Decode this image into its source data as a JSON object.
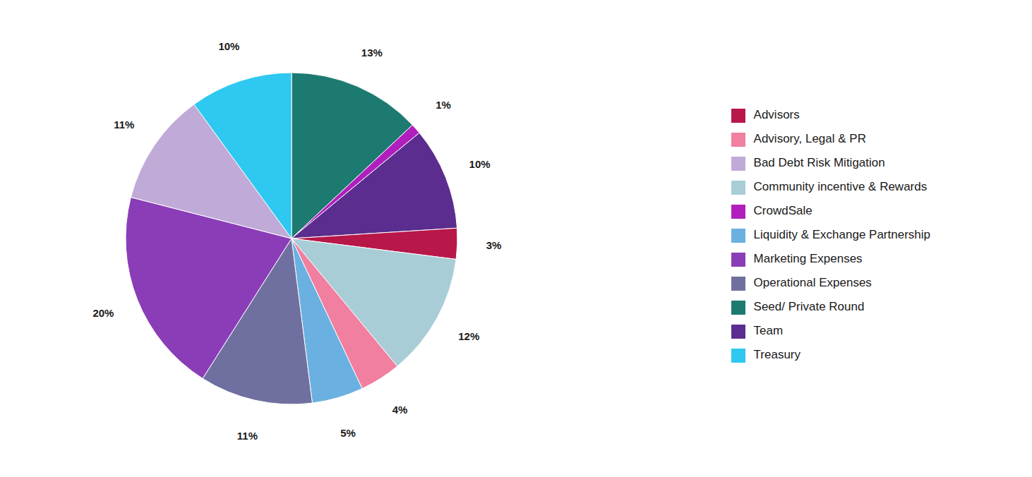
{
  "chart_data": {
    "type": "pie",
    "categories": [
      "Seed/ Private Round",
      "CrowdSale",
      "Team",
      "Advisors",
      "Community incentive & Rewards",
      "Advisory, Legal & PR",
      "Liquidity & Exchange Partnership",
      "Operational Expenses",
      "Marketing Expenses",
      "Bad Debt Risk Mitigation",
      "Treasury"
    ],
    "values": [
      13,
      1,
      10,
      3,
      12,
      4,
      5,
      11,
      20,
      11,
      10
    ],
    "value_labels": [
      "13%",
      "1%",
      "10%",
      "3%",
      "12%",
      "4%",
      "5%",
      "11%",
      "20%",
      "11%",
      "10%"
    ],
    "colors": [
      "#1d7a70",
      "#b01fbe",
      "#5b2d8e",
      "#b8174a",
      "#a8cdd6",
      "#f07fa0",
      "#6ab0e0",
      "#7070a0",
      "#8b3db8",
      "#c0aad8",
      "#2ec8f0"
    ],
    "data_labels": true,
    "legend": "right"
  }
}
